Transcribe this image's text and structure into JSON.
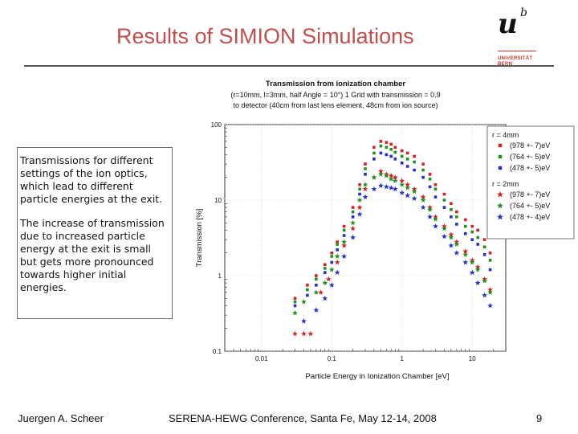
{
  "slide": {
    "title": "Results of SIMION Simulations",
    "logo": {
      "letter": "u",
      "superscript": "b",
      "line1": "UNIVERSITÄT",
      "line2": "BERN"
    },
    "description_p1": "Transmissions for different settings of the ion optics, which lead to different particle energies at the exit.",
    "description_p2": "The increase of transmission due to increased particle energy at the exit is small but gets more pronounced towards higher initial energies.",
    "footer_author": "Juergen A. Scheer",
    "footer_conference": "SERENA-HEWG Conference, Santa Fe, May 12-14, 2008",
    "page_number": "9"
  },
  "chart_data": {
    "type": "scatter",
    "title": "Transmission from ionization chamber",
    "subtitle_line1": "(r=10mm, l=3mm, half Angle = 10°) 1 Grid with transmission = 0.9",
    "subtitle_line2": "to detector (40cm from last lens element, 48cm from ion source)",
    "xlabel": "Particle Energy in Ionization Chamber [eV]",
    "ylabel": "Transmission [%]",
    "xscale": "log",
    "yscale": "log",
    "xlim": [
      0.003,
      30
    ],
    "ylim": [
      0.1,
      100
    ],
    "xticks": [
      {
        "v": 0.01,
        "label": "0.01"
      },
      {
        "v": 0.1,
        "label": "0.1"
      },
      {
        "v": 1,
        "label": "1"
      },
      {
        "v": 10,
        "label": "10"
      }
    ],
    "yticks": [
      {
        "v": 0.1,
        "label": "0.1"
      },
      {
        "v": 1,
        "label": "1"
      },
      {
        "v": 10,
        "label": "10"
      },
      {
        "v": 100,
        "label": "100"
      }
    ],
    "legend": {
      "position": "right",
      "groups": [
        {
          "title": "r = 4mm",
          "entries": [
            {
              "series": 0,
              "label": "(978 +- 7)eV"
            },
            {
              "series": 1,
              "label": "(764 +- 5)eV"
            },
            {
              "series": 2,
              "label": "(478 +- 5)eV"
            }
          ]
        },
        {
          "title": "r = 2mm",
          "entries": [
            {
              "series": 3,
              "label": "(978 +- 7)eV"
            },
            {
              "series": 4,
              "label": "(764 +- 5)eV"
            },
            {
              "series": 5,
              "label": "(478 +- 4)eV"
            }
          ]
        }
      ]
    },
    "series": [
      {
        "name": "r = 4mm (978 +- 7)eV",
        "marker": "square",
        "color": "#d42020",
        "x": [
          0.03,
          0.045,
          0.06,
          0.08,
          0.1,
          0.12,
          0.15,
          0.2,
          0.25,
          0.3,
          0.4,
          0.5,
          0.6,
          0.7,
          0.8,
          1.0,
          1.2,
          1.5,
          2.0,
          2.5,
          3.0,
          4.0,
          5.0,
          6.0,
          8.0,
          10.0,
          12.0,
          15.0,
          18.0
        ],
        "y": [
          0.5,
          0.75,
          1.0,
          1.4,
          2.0,
          2.8,
          4.5,
          8.0,
          16.0,
          30.0,
          50.0,
          60.0,
          58.0,
          55.0,
          50.0,
          45.0,
          42.0,
          38.0,
          30.0,
          22.0,
          16.0,
          12.0,
          9.0,
          7.0,
          5.5,
          4.5,
          4.0,
          3.0,
          2.0
        ]
      },
      {
        "name": "r = 4mm (764 +- 5)eV",
        "marker": "square",
        "color": "#209020",
        "x": [
          0.03,
          0.045,
          0.06,
          0.08,
          0.1,
          0.12,
          0.15,
          0.2,
          0.25,
          0.3,
          0.4,
          0.5,
          0.6,
          0.7,
          0.8,
          1.0,
          1.2,
          1.5,
          2.0,
          2.5,
          3.0,
          4.0,
          5.0,
          6.0,
          8.0,
          10.0,
          12.0,
          15.0,
          18.0
        ],
        "y": [
          0.45,
          0.65,
          0.9,
          1.25,
          1.8,
          2.6,
          4.0,
          7.0,
          14.0,
          26.0,
          42.0,
          52.0,
          50.0,
          47.0,
          43.0,
          38.0,
          35.0,
          32.0,
          25.0,
          19.0,
          14.0,
          10.0,
          7.5,
          6.0,
          4.5,
          3.8,
          3.2,
          2.4,
          1.6
        ]
      },
      {
        "name": "r = 4mm (478 +- 5)eV",
        "marker": "square",
        "color": "#2030c8",
        "x": [
          0.03,
          0.045,
          0.06,
          0.08,
          0.1,
          0.12,
          0.15,
          0.2,
          0.25,
          0.3,
          0.4,
          0.5,
          0.6,
          0.7,
          0.8,
          1.0,
          1.2,
          1.5,
          2.0,
          2.5,
          3.0,
          4.0,
          5.0,
          6.0,
          8.0,
          10.0,
          12.0,
          15.0,
          18.0
        ],
        "y": [
          0.4,
          0.55,
          0.75,
          1.1,
          1.5,
          2.2,
          3.4,
          6.0,
          12.0,
          22.0,
          35.0,
          42.0,
          40.0,
          38.0,
          35.0,
          31.0,
          28.0,
          25.0,
          20.0,
          15.0,
          11.0,
          8.0,
          6.0,
          4.8,
          3.6,
          3.0,
          2.6,
          1.9,
          1.2
        ]
      },
      {
        "name": "r = 2mm (978 +- 7)eV",
        "marker": "star",
        "color": "#d42020",
        "x": [
          0.03,
          0.04,
          0.05,
          0.07,
          0.09,
          0.12,
          0.15,
          0.2,
          0.25,
          0.3,
          0.4,
          0.5,
          0.6,
          0.7,
          0.8,
          1.0,
          1.2,
          1.5,
          2.0,
          2.5,
          3.0,
          4.0,
          5.0,
          6.0,
          8.0,
          10.0,
          12.0,
          15.0,
          18.0
        ],
        "y": [
          0.17,
          0.17,
          0.17,
          0.6,
          0.9,
          1.5,
          2.5,
          4.2,
          8.0,
          14.0,
          20.0,
          24.0,
          22.0,
          21.0,
          20.0,
          18.0,
          16.0,
          14.0,
          11.0,
          8.0,
          6.0,
          4.5,
          3.5,
          2.8,
          2.1,
          1.6,
          1.3,
          0.9,
          0.65
        ]
      },
      {
        "name": "r = 2mm (764 +- 5)eV",
        "marker": "star",
        "color": "#209020",
        "x": [
          0.03,
          0.04,
          0.06,
          0.08,
          0.1,
          0.12,
          0.15,
          0.2,
          0.25,
          0.3,
          0.4,
          0.5,
          0.6,
          0.7,
          0.8,
          1.0,
          1.2,
          1.5,
          2.0,
          2.5,
          3.0,
          4.0,
          5.0,
          6.0,
          8.0,
          10.0,
          12.0,
          15.0,
          18.0
        ],
        "y": [
          0.32,
          0.45,
          0.6,
          0.8,
          1.2,
          1.8,
          2.8,
          5.0,
          10.0,
          16.0,
          20.0,
          22.0,
          21.0,
          19.0,
          18.0,
          16.0,
          14.5,
          13.0,
          10.0,
          7.5,
          5.6,
          4.2,
          3.2,
          2.6,
          1.9,
          1.5,
          1.2,
          0.85,
          0.6
        ]
      },
      {
        "name": "r = 2mm (478 +- 4)eV",
        "marker": "star",
        "color": "#2030c8",
        "x": [
          0.04,
          0.06,
          0.08,
          0.1,
          0.12,
          0.15,
          0.2,
          0.25,
          0.3,
          0.4,
          0.5,
          0.6,
          0.7,
          0.8,
          1.0,
          1.2,
          1.5,
          2.0,
          2.5,
          3.0,
          4.0,
          5.0,
          6.0,
          8.0,
          10.0,
          12.0,
          15.0,
          18.0
        ],
        "y": [
          0.25,
          0.35,
          0.5,
          0.75,
          1.1,
          1.8,
          3.2,
          6.5,
          11.0,
          14.0,
          15.5,
          15.0,
          14.5,
          14.0,
          12.5,
          11.5,
          10.5,
          8.0,
          6.0,
          4.5,
          3.3,
          2.5,
          2.0,
          1.5,
          1.1,
          0.8,
          0.55,
          0.4
        ]
      }
    ]
  }
}
